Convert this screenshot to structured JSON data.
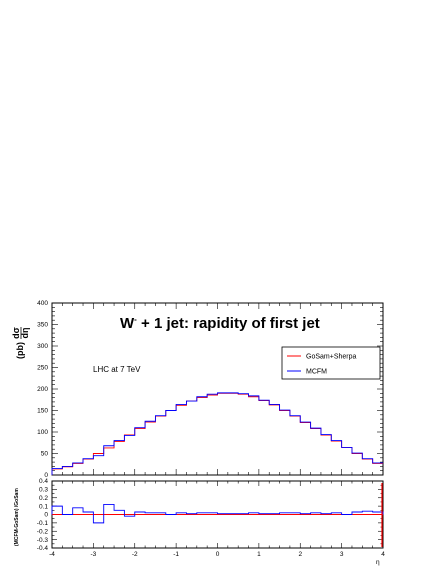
{
  "chart_data": [
    {
      "type": "line",
      "title_main": "W",
      "title_sup": "-",
      "title_rest": " + 1 jet: rapidity of first jet",
      "annotation": "LHC at 7 TeV",
      "ylabel_main": "(pb)",
      "ylabel_num": "dσ",
      "ylabel_den": "dη",
      "xlabel": "η",
      "xlim": [
        -4,
        4
      ],
      "ylim": [
        0,
        400
      ],
      "ytick_labels": [
        "0",
        "50",
        "100",
        "150",
        "200",
        "250",
        "300",
        "350",
        "400"
      ],
      "xtick_labels": [
        "-4",
        "-3",
        "-2",
        "-1",
        "0",
        "1",
        "2",
        "3",
        "4"
      ],
      "legend_placement": "upper-right",
      "bin_edges": [
        -4.0,
        -3.75,
        -3.5,
        -3.25,
        -3.0,
        -2.75,
        -2.5,
        -2.25,
        -2.0,
        -1.75,
        -1.5,
        -1.25,
        -1.0,
        -0.75,
        -0.5,
        -0.25,
        0.0,
        0.25,
        0.5,
        0.75,
        1.0,
        1.25,
        1.5,
        1.75,
        2.0,
        2.25,
        2.5,
        2.75,
        3.0,
        3.25,
        3.5,
        3.75,
        4.0
      ],
      "series": [
        {
          "name": "GoSam+Sherpa",
          "color": "#ff0000",
          "values": [
            14,
            19,
            27,
            37,
            50,
            63,
            78,
            93,
            108,
            123,
            137,
            150,
            162,
            172,
            180,
            186,
            190,
            190,
            188,
            182,
            173,
            163,
            150,
            137,
            122,
            108,
            93,
            79,
            64,
            50,
            37,
            27
          ]
        },
        {
          "name": "MCFM",
          "color": "#0000ff",
          "values": [
            15,
            20,
            28,
            38,
            45,
            68,
            80,
            92,
            110,
            125,
            138,
            150,
            164,
            172,
            182,
            188,
            191,
            191,
            189,
            184,
            174,
            164,
            151,
            138,
            123,
            109,
            94,
            80,
            64,
            51,
            38,
            28
          ]
        }
      ]
    },
    {
      "type": "line",
      "ylabel": "(MCFM-GoSam) /GoSam",
      "xlim": [
        -4,
        4
      ],
      "ylim": [
        -0.4,
        0.4
      ],
      "ytick_labels": [
        "-0.4",
        "-0.3",
        "-0.2",
        "-0.1",
        "0",
        "0.1",
        "0.2",
        "0.3",
        "0.4"
      ],
      "xtick_labels": [
        "-4",
        "-3",
        "-2",
        "-1",
        "0",
        "1",
        "2",
        "3",
        "4"
      ],
      "xlabel": "η",
      "reference_line": 0,
      "series": [
        {
          "name": "MCFM",
          "color": "#0000ff",
          "values": [
            0.1,
            0.0,
            0.08,
            0.03,
            -0.1,
            0.12,
            0.05,
            -0.02,
            0.03,
            0.02,
            0.02,
            0.0,
            0.02,
            0.01,
            0.02,
            0.02,
            0.01,
            0.01,
            0.01,
            0.02,
            0.01,
            0.01,
            0.02,
            0.02,
            0.01,
            0.02,
            0.01,
            0.02,
            0.0,
            0.03,
            0.04,
            0.03
          ]
        }
      ]
    }
  ],
  "legend": {
    "items": [
      {
        "label": "GoSam+Sherpa",
        "color": "#ff0000"
      },
      {
        "label": "MCFM",
        "color": "#0000ff"
      }
    ]
  }
}
